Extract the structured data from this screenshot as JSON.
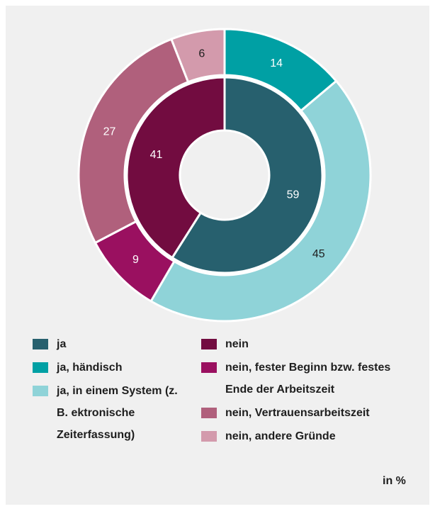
{
  "chart_data": {
    "type": "nested-donut",
    "unit": "in %",
    "rings": [
      {
        "categories": [
          "ja",
          "nein"
        ],
        "values": [
          59,
          41
        ],
        "colors": [
          "#27606e",
          "#720c40"
        ]
      },
      {
        "categories": [
          "ja, händisch",
          "ja, in einem System (z. B. ektronische Zeiterfassung)",
          "nein, fester Beginn bzw. festes Ende der Arbeitszeit",
          "nein, Vertrauensarbeitszeit",
          "nein, andere Gründe"
        ],
        "values": [
          14,
          45,
          9,
          27,
          6
        ],
        "colors": [
          "#00a0a4",
          "#8fd3d8",
          "#9a1060",
          "#b0607c",
          "#d39aac"
        ]
      }
    ]
  }
}
